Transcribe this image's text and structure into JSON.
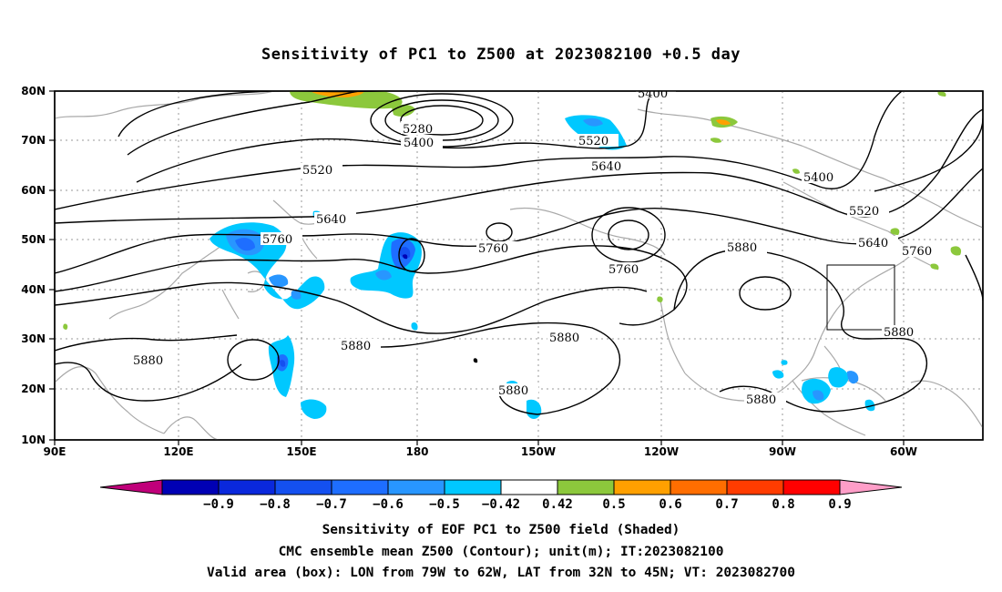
{
  "title": "Sensitivity of PC1 to Z500 at 2023082100 +0.5 day",
  "axes": {
    "lat_labels": [
      "80N",
      "70N",
      "60N",
      "50N",
      "40N",
      "30N",
      "20N",
      "10N"
    ],
    "lon_labels": [
      "90E",
      "120E",
      "150E",
      "180",
      "150W",
      "120W",
      "90W",
      "60W"
    ]
  },
  "contour_labels": [
    "5400",
    "5280",
    "5400",
    "5520",
    "5520",
    "5640",
    "5640",
    "5400",
    "5520",
    "5640",
    "5760",
    "5760",
    "5760",
    "5760",
    "5880",
    "5880",
    "5880",
    "5880",
    "5880",
    "5880"
  ],
  "colorbar": {
    "labels": [
      "-0.9",
      "-0.8",
      "-0.7",
      "-0.6",
      "-0.5",
      "-0.42",
      "0.42",
      "0.5",
      "0.6",
      "0.7",
      "0.8",
      "0.9"
    ],
    "colors": [
      "#0000b4",
      "#0a28dc",
      "#1450f0",
      "#1e6eff",
      "#2896ff",
      "#00c8ff",
      "#ffffff",
      "#8cc83c",
      "#ffa000",
      "#ff6e00",
      "#ff3c00",
      "#ff0000"
    ],
    "low_extend_color": "#c0007a",
    "high_extend_color": "#ff9ec8"
  },
  "valid_box": {
    "lon_west": "79W",
    "lon_east": "62W",
    "lat_south": "32N",
    "lat_north": "45N"
  },
  "captions": [
    "Sensitivity of EOF PC1 to Z500 field (Shaded)",
    "CMC ensemble mean Z500 (Contour); unit(m); IT:2023082100",
    "Valid area (box): LON from 79W to 62W, LAT from 32N to 45N; VT: 2023082700"
  ]
}
